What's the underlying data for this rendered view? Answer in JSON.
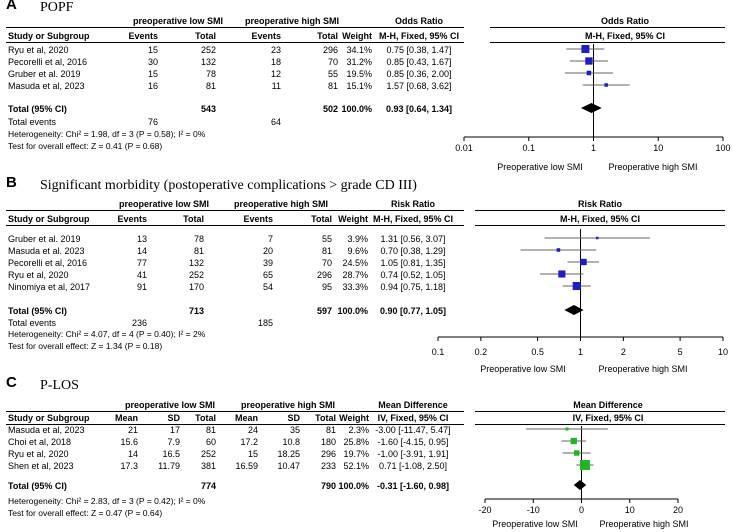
{
  "chart_data": [
    {
      "type": "forest",
      "letter": "A",
      "title": "POPF",
      "group_low": "preoperative low SMI",
      "group_high": "preoperative high SMI",
      "col_study": "Study or Subgroup",
      "col_events": "Events",
      "col_total": "Total",
      "col_weight": "Weight",
      "measure_title": "Odds Ratio",
      "measure_method": "M-H, Fixed, 95% CI",
      "scale": "log",
      "xlim": [
        0.01,
        100
      ],
      "ticks": [
        "0.01",
        "0.1",
        "1",
        "10",
        "100"
      ],
      "xlabel_left": "Preoperative low SMI",
      "xlabel_right": "Preoperative high SMI",
      "rows": [
        {
          "study": "Ryu et al, 2020",
          "low": [
            "15",
            "252"
          ],
          "high": [
            "23",
            "296"
          ],
          "weight": "34.1%",
          "ci_text": "0.75 [0.38, 1.47]",
          "est": 0.75,
          "lo": 0.38,
          "hi": 1.47,
          "w": 34.1
        },
        {
          "study": "Pecorelli et al, 2016",
          "low": [
            "30",
            "132"
          ],
          "high": [
            "18",
            "70"
          ],
          "weight": "31.2%",
          "ci_text": "0.85 [0.43, 1.67]",
          "est": 0.85,
          "lo": 0.43,
          "hi": 1.67,
          "w": 31.2
        },
        {
          "study": "Gruber et al. 2019",
          "low": [
            "15",
            "78"
          ],
          "high": [
            "12",
            "55"
          ],
          "weight": "19.5%",
          "ci_text": "0.85 [0.36, 2.00]",
          "est": 0.85,
          "lo": 0.36,
          "hi": 2.0,
          "w": 19.5
        },
        {
          "study": "Masuda et al, 2023",
          "low": [
            "16",
            "81"
          ],
          "high": [
            "11",
            "81"
          ],
          "weight": "15.1%",
          "ci_text": "1.57 [0.68, 3.62]",
          "est": 1.57,
          "lo": 0.68,
          "hi": 3.62,
          "w": 15.1
        }
      ],
      "total": {
        "label": "Total (95% CI)",
        "low_total": "543",
        "high_total": "502",
        "weight": "100.0%",
        "ci_text": "0.93 [0.64, 1.34]",
        "est": 0.93,
        "lo": 0.64,
        "hi": 1.34
      },
      "total_events": {
        "label": "Total events",
        "low": "76",
        "high": "64"
      },
      "heterogeneity": "Heterogeneity: Chi² = 1.98, df = 3 (P = 0.58); I² = 0%",
      "overall": "Test for overall effect: Z = 0.41 (P = 0.68)"
    },
    {
      "type": "forest",
      "letter": "B",
      "title": "Significant morbidity (postoperative complications > grade CD III)",
      "group_low": "preoperative low SMI",
      "group_high": "preoperative high SMI",
      "col_study": "Study or Subgroup",
      "col_events": "Events",
      "col_total": "Total",
      "col_weight": "Weight",
      "measure_title": "Risk Ratio",
      "measure_method": "M-H, Fixed, 95% CI",
      "scale": "log",
      "xlim": [
        0.1,
        10
      ],
      "ticks": [
        "0.1",
        "0.2",
        "0.5",
        "1",
        "2",
        "5",
        "10"
      ],
      "xlabel_left": "Preoperative low SMI",
      "xlabel_right": "Preoperative high SMI",
      "rows": [
        {
          "study": "Gruber et al. 2019",
          "low": [
            "13",
            "78"
          ],
          "high": [
            "7",
            "55"
          ],
          "weight": "3.9%",
          "ci_text": "1.31 [0.56, 3.07]",
          "est": 1.31,
          "lo": 0.56,
          "hi": 3.07,
          "w": 3.9
        },
        {
          "study": "Masuda et al. 2023",
          "low": [
            "14",
            "81"
          ],
          "high": [
            "20",
            "81"
          ],
          "weight": "9.6%",
          "ci_text": "0.70 [0.38, 1.29]",
          "est": 0.7,
          "lo": 0.38,
          "hi": 1.29,
          "w": 9.6
        },
        {
          "study": "Pecorelli et al, 2016",
          "low": [
            "77",
            "132"
          ],
          "high": [
            "39",
            "70"
          ],
          "weight": "24.5%",
          "ci_text": "1.05 [0.81, 1.35]",
          "est": 1.05,
          "lo": 0.81,
          "hi": 1.35,
          "w": 24.5
        },
        {
          "study": "Ryu et al, 2020",
          "low": [
            "41",
            "252"
          ],
          "high": [
            "65",
            "296"
          ],
          "weight": "28.7%",
          "ci_text": "0.74 [0.52, 1.05]",
          "est": 0.74,
          "lo": 0.52,
          "hi": 1.05,
          "w": 28.7
        },
        {
          "study": "Ninomiya et al, 2017",
          "low": [
            "91",
            "170"
          ],
          "high": [
            "54",
            "95"
          ],
          "weight": "33.3%",
          "ci_text": "0.94 [0.75, 1.18]",
          "est": 0.94,
          "lo": 0.75,
          "hi": 1.18,
          "w": 33.3
        }
      ],
      "total": {
        "label": "Total (95% CI)",
        "low_total": "713",
        "high_total": "597",
        "weight": "100.0%",
        "ci_text": "0.90 [0.77, 1.05]",
        "est": 0.9,
        "lo": 0.77,
        "hi": 1.05
      },
      "total_events": {
        "label": "Total events",
        "low": "236",
        "high": "185"
      },
      "heterogeneity": "Heterogeneity: Chi² = 4.07, df = 4 (P = 0.40); I² = 2%",
      "overall": "Test for overall effect: Z = 1.34 (P = 0.18)"
    },
    {
      "type": "forest",
      "letter": "C",
      "title": "P-LOS",
      "group_low": "preoperative low SMI",
      "group_high": "preoperative high SMI",
      "col_study": "Study or Subgroup",
      "col_mean": "Mean",
      "col_sd": "SD",
      "col_total": "Total",
      "col_weight": "Weight",
      "measure_title": "Mean Difference",
      "measure_method": "IV, Fixed, 95% CI",
      "scale": "linear",
      "xlim": [
        -20,
        20
      ],
      "ticks": [
        "-20",
        "-10",
        "0",
        "10",
        "20"
      ],
      "xlabel_left": "Preoperative low SMI",
      "xlabel_right": "Preoperative high SMI",
      "rows": [
        {
          "study": "Masuda et al, 2023",
          "low": [
            "21",
            "17",
            "81"
          ],
          "high": [
            "24",
            "35",
            "81"
          ],
          "weight": "2.3%",
          "ci_text": "-3.00 [-11.47, 5.47]",
          "est": -3.0,
          "lo": -11.47,
          "hi": 5.47,
          "w": 2.3
        },
        {
          "study": "Choi et al, 2018",
          "low": [
            "15.6",
            "7.9",
            "60"
          ],
          "high": [
            "17.2",
            "10.8",
            "180"
          ],
          "weight": "25.8%",
          "ci_text": "-1.60 [-4.15, 0.95]",
          "est": -1.6,
          "lo": -4.15,
          "hi": 0.95,
          "w": 25.8
        },
        {
          "study": "Ryu et al, 2020",
          "low": [
            "14",
            "16.5",
            "252"
          ],
          "high": [
            "15",
            "18.25",
            "296"
          ],
          "weight": "19.7%",
          "ci_text": "-1.00 [-3.91, 1.91]",
          "est": -1.0,
          "lo": -3.91,
          "hi": 1.91,
          "w": 19.7
        },
        {
          "study": "Shen et al, 2023",
          "low": [
            "17.3",
            "11.79",
            "381"
          ],
          "high": [
            "16.59",
            "10.47",
            "233"
          ],
          "weight": "52.1%",
          "ci_text": "0.71 [-1.08, 2.50]",
          "est": 0.71,
          "lo": -1.08,
          "hi": 2.5,
          "w": 52.1
        }
      ],
      "total": {
        "label": "Total (95% CI)",
        "low_total": "774",
        "high_total": "790",
        "weight": "100.0%",
        "ci_text": "-0.31 [-1.60, 0.98]",
        "est": -0.31,
        "lo": -1.6,
        "hi": 0.98
      },
      "heterogeneity": "Heterogeneity: Chi² = 2.83, df = 3 (P = 0.42); I² = 0%",
      "overall": "Test for overall effect: Z = 0.47 (P = 0.64)"
    }
  ],
  "colors": {
    "square_blue": "#1f1fbf",
    "square_green": "#22b422",
    "ci_line": "#666666",
    "text": "#000000"
  }
}
